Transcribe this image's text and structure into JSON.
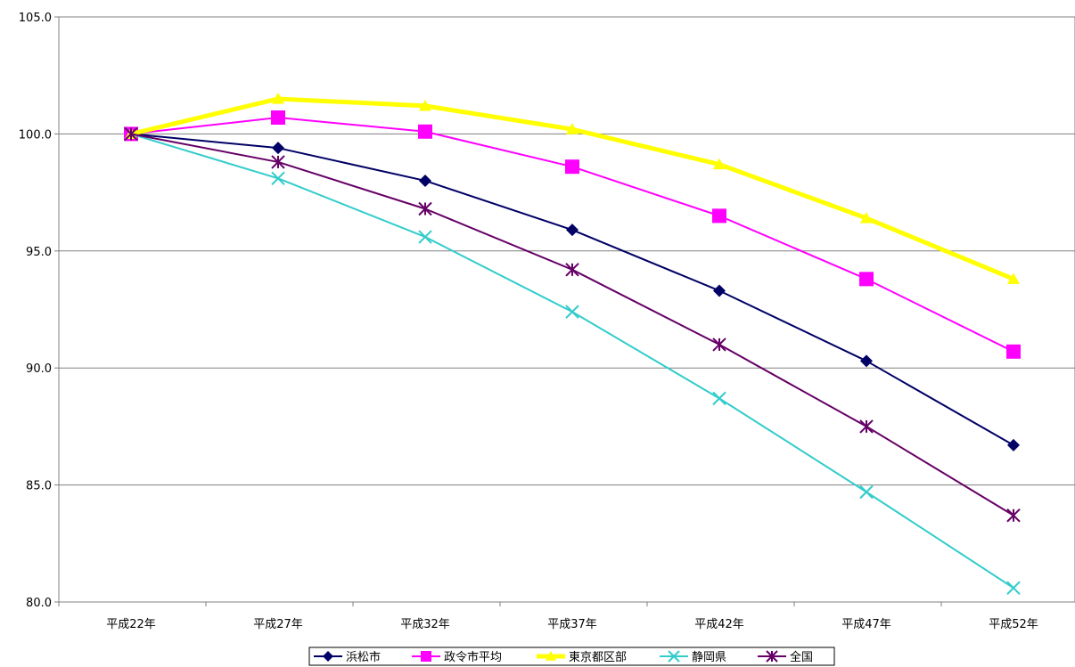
{
  "chart_data": {
    "type": "line",
    "title": "",
    "xlabel": "",
    "ylabel": "",
    "categories": [
      "平成22年",
      "平成27年",
      "平成32年",
      "平成37年",
      "平成42年",
      "平成47年",
      "平成52年"
    ],
    "ylim": [
      80,
      105
    ],
    "yticks": [
      "105.0",
      "100.0",
      "95.0",
      "90.0",
      "85.0",
      "80.0"
    ],
    "grid": true,
    "legend_position": "bottom",
    "series": [
      {
        "name": "浜松市",
        "color": "#000066",
        "marker": "diamond",
        "values": [
          100.0,
          99.4,
          98.0,
          95.9,
          93.3,
          90.3,
          86.7
        ]
      },
      {
        "name": "政令市平均",
        "color": "#ff00ff",
        "marker": "square",
        "values": [
          100.0,
          100.7,
          100.1,
          98.6,
          96.5,
          93.8,
          90.7
        ]
      },
      {
        "name": "東京都区部",
        "color": "#ffff00",
        "marker": "triangle",
        "values": [
          100.0,
          101.5,
          101.2,
          100.2,
          98.7,
          96.4,
          93.8
        ]
      },
      {
        "name": "静岡県",
        "color": "#33cccc",
        "marker": "x",
        "values": [
          100.0,
          98.1,
          95.6,
          92.4,
          88.7,
          84.7,
          80.6
        ]
      },
      {
        "name": "全国",
        "color": "#660066",
        "marker": "asterisk",
        "values": [
          100.0,
          98.8,
          96.8,
          94.2,
          91.0,
          87.5,
          83.7
        ]
      }
    ]
  }
}
